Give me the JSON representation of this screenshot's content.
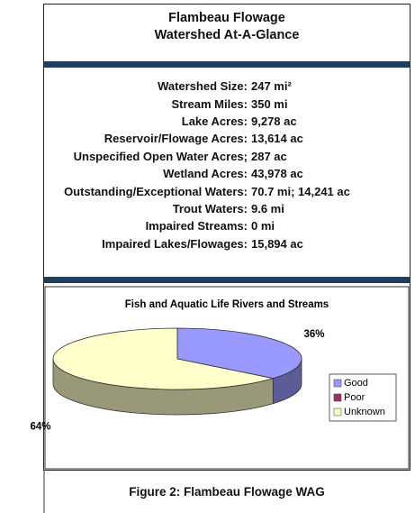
{
  "header": {
    "title_line1": "Flambeau Flowage",
    "title_line2": "Watershed At-A-Glance"
  },
  "stats": {
    "items": [
      {
        "label": "Watershed Size:",
        "value": "247 mi²"
      },
      {
        "label": "Stream Miles:",
        "value": "350 mi"
      },
      {
        "label": "Lake Acres:",
        "value": "9,278 ac"
      },
      {
        "label": "Reservoir/Flowage Acres:",
        "value": "13,614 ac"
      },
      {
        "label": "Unspecified Open Water Acres;",
        "value": "287 ac"
      },
      {
        "label": "Wetland Acres:",
        "value": "43,978 ac"
      },
      {
        "label": "Outstanding/Exceptional Waters:",
        "value": "70.7 mi; 14,241 ac"
      },
      {
        "label": "Trout Waters:",
        "value": "9.6 mi"
      },
      {
        "label": "Impaired Streams:",
        "value": "0 mi"
      },
      {
        "label": "Impaired Lakes/Flowages:",
        "value": "15,894 ac"
      }
    ]
  },
  "chart_data": {
    "type": "pie",
    "title": "Fish and Aquatic Life Rivers and Streams",
    "categories": [
      "Good",
      "Poor",
      "Unknown"
    ],
    "values": [
      36,
      0,
      64
    ],
    "value_labels": [
      "36%",
      null,
      "64%"
    ],
    "colors": [
      "#9999ff",
      "#993366",
      "#ffffcc"
    ],
    "legend": "right"
  },
  "caption": "Figure 2: Flambeau Flowage WAG"
}
